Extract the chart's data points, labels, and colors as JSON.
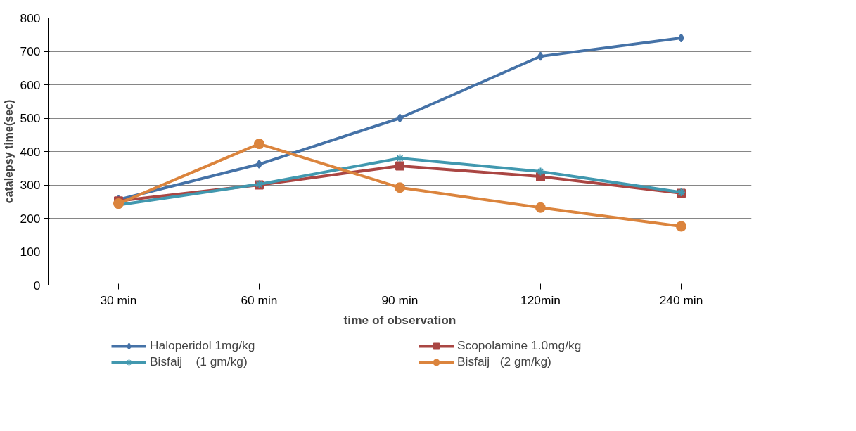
{
  "chart_data": {
    "type": "line",
    "xlabel": "time of observation",
    "ylabel": "catalepsy time(sec)",
    "categories": [
      "30 min",
      "60 min",
      "90 min",
      "120min",
      "240 min"
    ],
    "ylim": [
      0,
      800
    ],
    "yticks": [
      0,
      100,
      200,
      300,
      400,
      500,
      600,
      700,
      800
    ],
    "grid": "y",
    "legend": "bottom",
    "line_style": "solid",
    "series": [
      {
        "name": "Haloperidol 1mg/kg",
        "color": "#4572a7",
        "marker": "diamond",
        "values": [
          256,
          362,
          500,
          685,
          740
        ]
      },
      {
        "name": "Scopolamine 1.0mg/kg",
        "color": "#aa4643",
        "marker": "square",
        "values": [
          252,
          300,
          357,
          325,
          275
        ]
      },
      {
        "name": "Bisfaij    (1 gm/kg)",
        "color": "#4198af",
        "marker": "cross",
        "values": [
          240,
          302,
          380,
          340,
          278
        ]
      },
      {
        "name": "Bisfaij   (2 gm/kg)",
        "color": "#db843d",
        "marker": "circle",
        "values": [
          244,
          423,
          292,
          232,
          176
        ]
      }
    ]
  }
}
